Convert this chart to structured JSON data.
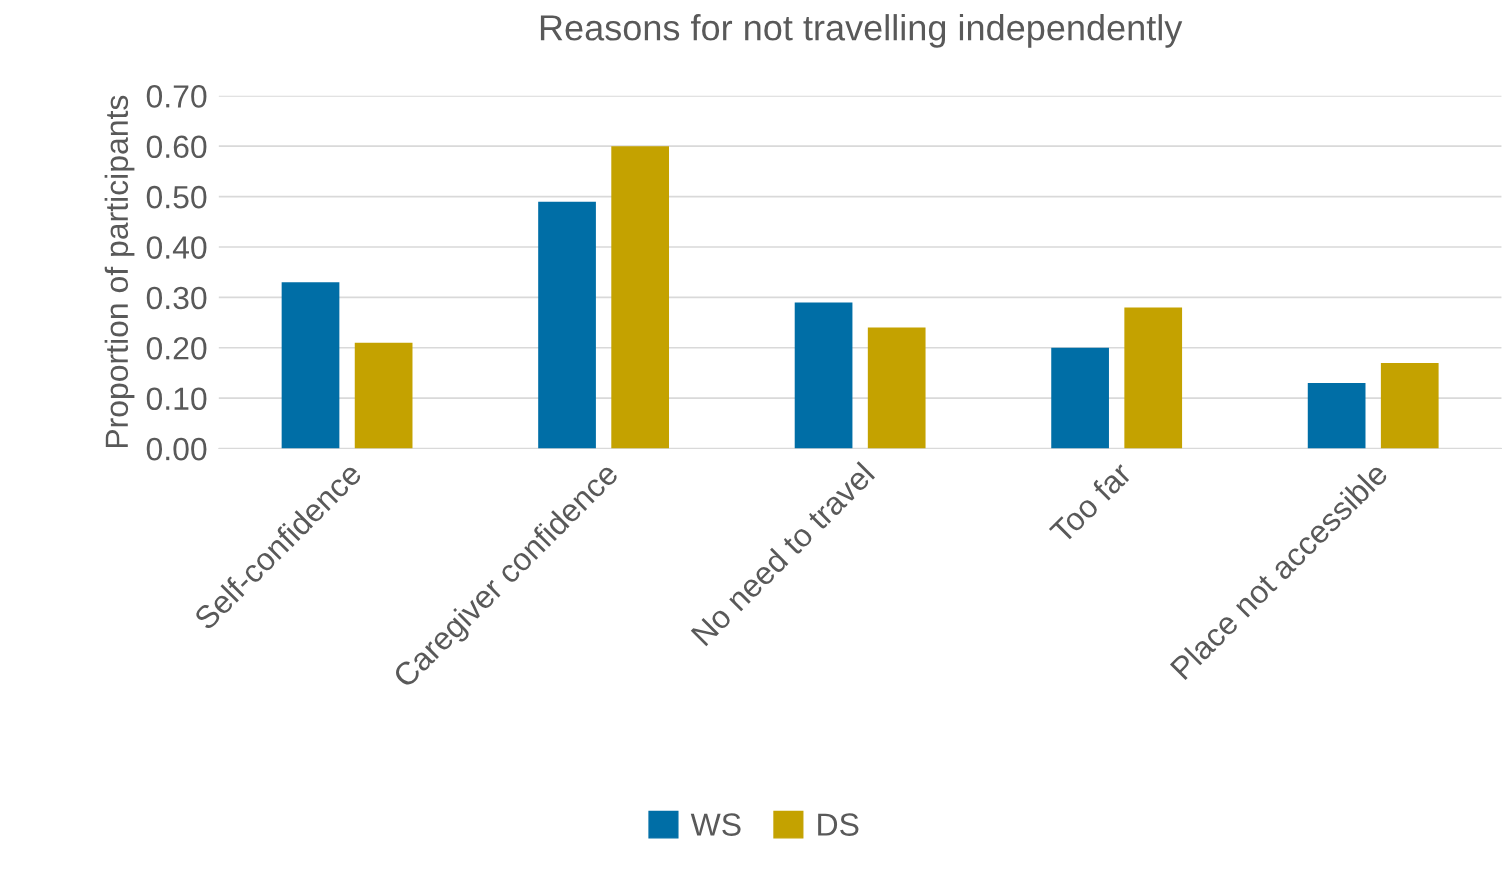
{
  "chart_data": {
    "type": "bar",
    "title": "Reasons for not travelling independently",
    "ylabel": "Proportion of participants",
    "categories": [
      "Self-confidence",
      "Caregiver confidence",
      "No need to travel",
      "Too far",
      "Place not accessible"
    ],
    "series": [
      {
        "name": "WS",
        "color": "#006ea6",
        "values": [
          0.33,
          0.49,
          0.29,
          0.2,
          0.13
        ]
      },
      {
        "name": "DS",
        "color": "#c4a200",
        "values": [
          0.21,
          0.6,
          0.24,
          0.28,
          0.17
        ]
      }
    ],
    "ylim": [
      0,
      0.7
    ],
    "yticks": [
      {
        "value": 0,
        "label": "0.00"
      },
      {
        "value": 0.1,
        "label": "0.10"
      },
      {
        "value": 0.2,
        "label": "0.20"
      },
      {
        "value": 0.3,
        "label": "0.30"
      },
      {
        "value": 0.4,
        "label": "0.40"
      },
      {
        "value": 0.5,
        "label": "0.50"
      },
      {
        "value": 0.6,
        "label": "0.60"
      },
      {
        "value": 0.7,
        "label": "0.70"
      }
    ],
    "grid": "y",
    "legend": "bottom"
  }
}
